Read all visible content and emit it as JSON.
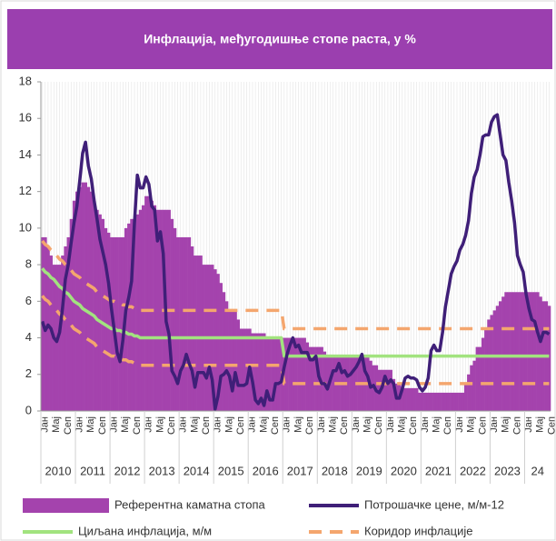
{
  "chart_data": {
    "type": "combo",
    "title": "Инфлација, међугодишње стопе раста, у %",
    "categories": [
      "Јан",
      null,
      null,
      null,
      "Мај",
      null,
      null,
      null,
      "Сеп",
      null,
      null,
      null,
      "Јан",
      null,
      null,
      null,
      "Мај",
      null,
      null,
      null,
      "Сеп",
      null,
      null,
      null,
      "Јан",
      null,
      null,
      null,
      "Мај",
      null,
      null,
      null,
      "Сеп",
      null,
      null,
      null,
      "Јан",
      null,
      null,
      null,
      "Мај",
      null,
      null,
      null,
      "Сеп",
      null,
      null,
      null,
      "Јан",
      null,
      null,
      null,
      "Мај",
      null,
      null,
      null,
      "Сеп",
      null,
      null,
      null,
      "Јан",
      null,
      null,
      null,
      "Мај",
      null,
      null,
      null,
      "Сеп",
      null,
      null,
      null,
      "Јан",
      null,
      null,
      null,
      "Мај",
      null,
      null,
      null,
      "Сеп",
      null,
      null,
      null,
      "Јан",
      null,
      null,
      null,
      "Мај",
      null,
      null,
      null,
      "Сеп",
      null,
      null,
      null,
      "Јан",
      null,
      null,
      null,
      "Мај",
      null,
      null,
      null,
      "Сеп",
      null,
      null,
      null,
      "Јан",
      null,
      null,
      null,
      "Мај",
      null,
      null,
      null,
      "Сеп",
      null,
      null,
      null,
      "Јан",
      null,
      null,
      null,
      "Мај",
      null,
      null,
      null,
      "Сеп",
      null,
      null,
      null,
      "Јан",
      null,
      null,
      null,
      "Мај",
      null,
      null,
      null,
      "Сеп",
      null,
      null,
      null,
      "Јан",
      null,
      null,
      null,
      "Мај",
      null,
      null,
      null,
      "Сеп",
      null,
      null,
      null,
      "Јан",
      null,
      null,
      null,
      "Мај",
      null,
      null,
      null,
      "Сеп",
      null,
      null,
      null,
      "Јан",
      null,
      null,
      null,
      "Мај",
      null,
      null,
      null,
      "Сеп"
    ],
    "years": [
      "2010",
      "2011",
      "2012",
      "2013",
      "2014",
      "2015",
      "2016",
      "2017",
      "2018",
      "2019",
      "2020",
      "2021",
      "2022",
      "2023",
      "24"
    ],
    "ylim": [
      0,
      18
    ],
    "yticks": [
      0,
      2,
      4,
      6,
      8,
      10,
      12,
      14,
      16,
      18
    ],
    "grid": "x",
    "series": [
      {
        "name": "Референтна каматна стопа",
        "style": "bar",
        "color": "#a443ad",
        "values": [
          9.5,
          9.5,
          9.0,
          8.5,
          8.0,
          8.0,
          8.0,
          8.5,
          9.0,
          9.5,
          10.5,
          11.5,
          12.0,
          12.25,
          12.5,
          12.5,
          12.25,
          12.0,
          11.5,
          11.0,
          10.75,
          10.5,
          10.0,
          9.75,
          9.5,
          9.5,
          9.5,
          9.5,
          9.5,
          10.0,
          10.25,
          10.5,
          10.5,
          10.75,
          11.0,
          11.25,
          11.75,
          11.75,
          11.5,
          11.25,
          11.0,
          11.0,
          11.0,
          11.0,
          11.0,
          10.5,
          10.0,
          9.5,
          9.5,
          9.5,
          9.5,
          9.5,
          9.0,
          8.5,
          8.5,
          8.5,
          8.0,
          8.0,
          8.0,
          8.0,
          7.75,
          7.5,
          7.0,
          6.5,
          6.0,
          5.5,
          5.5,
          5.5,
          5.0,
          4.5,
          4.5,
          4.5,
          4.5,
          4.25,
          4.25,
          4.25,
          4.25,
          4.25,
          4.0,
          4.0,
          4.0,
          4.0,
          4.0,
          4.0,
          4.0,
          4.0,
          4.0,
          4.0,
          4.0,
          4.0,
          4.0,
          4.0,
          3.75,
          3.5,
          3.5,
          3.5,
          3.5,
          3.5,
          3.25,
          3.0,
          3.0,
          3.0,
          3.0,
          3.0,
          3.0,
          3.0,
          3.0,
          3.0,
          3.0,
          3.0,
          3.0,
          3.0,
          3.0,
          3.0,
          2.75,
          2.5,
          2.5,
          2.25,
          2.25,
          2.25,
          2.25,
          2.25,
          1.75,
          1.5,
          1.5,
          1.25,
          1.25,
          1.25,
          1.25,
          1.25,
          1.25,
          1.0,
          1.0,
          1.0,
          1.0,
          1.0,
          1.0,
          1.0,
          1.0,
          1.0,
          1.0,
          1.0,
          1.0,
          1.0,
          1.0,
          1.0,
          1.0,
          1.5,
          2.0,
          2.5,
          2.75,
          3.5,
          3.5,
          4.0,
          4.5,
          5.0,
          5.25,
          5.5,
          5.75,
          6.0,
          6.25,
          6.5,
          6.5,
          6.5,
          6.5,
          6.5,
          6.5,
          6.5,
          6.5,
          6.5,
          6.5,
          6.5,
          6.5,
          6.25,
          6.0,
          6.0,
          5.75
        ]
      },
      {
        "name": "Потрошачке цене, м/м-12",
        "style": "line",
        "color": "#3f1f78",
        "values": [
          4.9,
          4.4,
          4.7,
          4.5,
          4.0,
          3.8,
          4.3,
          5.6,
          7.2,
          8.0,
          9.2,
          10.3,
          11.2,
          12.6,
          14.1,
          14.7,
          13.4,
          12.7,
          11.5,
          10.5,
          9.4,
          8.7,
          8.0,
          7.0,
          5.6,
          4.4,
          3.2,
          2.7,
          3.9,
          5.5,
          6.2,
          7.1,
          10.3,
          12.9,
          12.2,
          12.2,
          12.8,
          12.4,
          11.2,
          11.0,
          9.3,
          9.8,
          8.6,
          4.9,
          4.2,
          2.2,
          1.9,
          1.5,
          2.2,
          2.5,
          3.1,
          2.6,
          2.2,
          1.3,
          2.1,
          2.1,
          2.1,
          1.8,
          2.4,
          1.7,
          0.1,
          0.8,
          1.9,
          2.0,
          2.2,
          1.9,
          1.1,
          2.1,
          1.4,
          1.4,
          1.4,
          1.5,
          2.4,
          1.6,
          0.6,
          0.4,
          0.7,
          0.3,
          1.1,
          0.6,
          0.6,
          1.5,
          1.5,
          1.6,
          2.4,
          3.1,
          3.6,
          4.0,
          3.5,
          3.6,
          3.2,
          3.2,
          3.2,
          2.8,
          2.8,
          3.0,
          1.9,
          1.5,
          1.5,
          1.2,
          1.7,
          2.2,
          2.2,
          2.6,
          2.1,
          2.2,
          1.9,
          2.0,
          2.2,
          2.4,
          2.7,
          3.1,
          2.2,
          1.9,
          1.3,
          1.4,
          1.1,
          1.0,
          1.3,
          1.9,
          1.5,
          1.7,
          1.5,
          0.7,
          0.7,
          1.2,
          1.8,
          1.9,
          1.8,
          1.8,
          1.7,
          1.3,
          1.1,
          1.3,
          1.8,
          3.3,
          3.6,
          3.3,
          3.3,
          4.3,
          5.7,
          6.6,
          7.5,
          7.9,
          8.2,
          8.8,
          9.1,
          9.6,
          10.4,
          11.9,
          12.8,
          13.2,
          14.0,
          15.0,
          15.1,
          15.1,
          15.8,
          16.1,
          16.2,
          15.1,
          14.0,
          13.7,
          12.5,
          11.5,
          10.3,
          8.5,
          8.0,
          7.6,
          6.4,
          5.6,
          5.0,
          4.9,
          4.3,
          3.8,
          4.3,
          4.3,
          4.2
        ]
      },
      {
        "name": "Циљана инфлација, м/м",
        "style": "line",
        "color": "#a2e37f",
        "values": [
          7.8,
          7.6,
          7.5,
          7.3,
          7.2,
          7.0,
          6.8,
          6.7,
          6.5,
          6.4,
          6.2,
          6.0,
          5.9,
          5.8,
          5.6,
          5.5,
          5.4,
          5.3,
          5.2,
          5.0,
          4.9,
          4.8,
          4.7,
          4.6,
          4.5,
          4.5,
          4.4,
          4.4,
          4.3,
          4.3,
          4.2,
          4.2,
          4.1,
          4.1,
          4.0,
          4.0,
          4,
          4,
          4,
          4,
          4,
          4,
          4,
          4,
          4,
          4,
          4,
          4,
          4,
          4,
          4,
          4,
          4,
          4,
          4,
          4,
          4,
          4,
          4,
          4,
          4,
          4,
          4,
          4,
          4,
          4,
          4,
          4,
          4,
          4,
          4,
          4,
          4,
          4,
          4,
          4,
          4,
          4,
          4,
          4,
          4,
          4,
          4,
          4,
          3,
          3,
          3,
          3,
          3,
          3,
          3,
          3,
          3,
          3,
          3,
          3,
          3,
          3,
          3,
          3,
          3,
          3,
          3,
          3,
          3,
          3,
          3,
          3,
          3,
          3,
          3,
          3,
          3,
          3,
          3,
          3,
          3,
          3,
          3,
          3,
          3,
          3,
          3,
          3,
          3,
          3,
          3,
          3,
          3,
          3,
          3,
          3,
          3,
          3,
          3,
          3,
          3,
          3,
          3,
          3,
          3,
          3,
          3,
          3,
          3,
          3,
          3,
          3,
          3,
          3,
          3,
          3,
          3,
          3,
          3,
          3,
          3,
          3,
          3,
          3,
          3,
          3,
          3,
          3,
          3,
          3,
          3,
          3,
          3,
          3,
          3,
          3,
          3,
          3,
          3,
          3,
          3
        ]
      },
      {
        "name": "Коридор инфлације",
        "style": "dashed",
        "color": "#f4a66e",
        "values": [
          9.3,
          9.1,
          9.0,
          8.8,
          8.7,
          8.5,
          8.3,
          8.2,
          8.0,
          7.9,
          7.7,
          7.5,
          7.4,
          7.3,
          7.1,
          7.0,
          6.9,
          6.8,
          6.7,
          6.5,
          6.4,
          6.3,
          6.2,
          6.1,
          6.0,
          6.0,
          5.9,
          5.9,
          5.8,
          5.8,
          5.7,
          5.7,
          5.6,
          5.6,
          5.5,
          5.5,
          5.5,
          5.5,
          5.5,
          5.5,
          5.5,
          5.5,
          5.5,
          5.5,
          5.5,
          5.5,
          5.5,
          5.5,
          5.5,
          5.5,
          5.5,
          5.5,
          5.5,
          5.5,
          5.5,
          5.5,
          5.5,
          5.5,
          5.5,
          5.5,
          5.5,
          5.5,
          5.5,
          5.5,
          5.5,
          5.5,
          5.5,
          5.5,
          5.5,
          5.5,
          5.5,
          5.5,
          5.5,
          5.5,
          5.5,
          5.5,
          5.5,
          5.5,
          5.5,
          5.5,
          5.5,
          5.5,
          5.5,
          5.5,
          4.5,
          4.5,
          4.5,
          4.5,
          4.5,
          4.5,
          4.5,
          4.5,
          4.5,
          4.5,
          4.5,
          4.5,
          4.5,
          4.5,
          4.5,
          4.5,
          4.5,
          4.5,
          4.5,
          4.5,
          4.5,
          4.5,
          4.5,
          4.5,
          4.5,
          4.5,
          4.5,
          4.5,
          4.5,
          4.5,
          4.5,
          4.5,
          4.5,
          4.5,
          4.5,
          4.5,
          4.5,
          4.5,
          4.5,
          4.5,
          4.5,
          4.5,
          4.5,
          4.5,
          4.5,
          4.5,
          4.5,
          4.5,
          4.5,
          4.5,
          4.5,
          4.5,
          4.5,
          4.5,
          4.5,
          4.5,
          4.5,
          4.5,
          4.5,
          4.5,
          4.5,
          4.5,
          4.5,
          4.5,
          4.5,
          4.5,
          4.5,
          4.5,
          4.5,
          4.5,
          4.5,
          4.5,
          4.5,
          4.5,
          4.5,
          4.5,
          4.5,
          4.5,
          4.5,
          4.5,
          4.5,
          4.5,
          4.5,
          4.5,
          4.5,
          4.5,
          4.5,
          4.5,
          4.5,
          4.5,
          4.5,
          4.5,
          4.5
        ],
        "values_low": [
          6.3,
          6.1,
          6.0,
          5.8,
          5.7,
          5.5,
          5.3,
          5.2,
          5.0,
          4.9,
          4.7,
          4.5,
          4.4,
          4.3,
          4.1,
          4.0,
          3.9,
          3.8,
          3.7,
          3.5,
          3.4,
          3.3,
          3.2,
          3.1,
          3.0,
          3.0,
          2.9,
          2.9,
          2.8,
          2.8,
          2.7,
          2.7,
          2.6,
          2.6,
          2.5,
          2.5,
          2.5,
          2.5,
          2.5,
          2.5,
          2.5,
          2.5,
          2.5,
          2.5,
          2.5,
          2.5,
          2.5,
          2.5,
          2.5,
          2.5,
          2.5,
          2.5,
          2.5,
          2.5,
          2.5,
          2.5,
          2.5,
          2.5,
          2.5,
          2.5,
          2.5,
          2.5,
          2.5,
          2.5,
          2.5,
          2.5,
          2.5,
          2.5,
          2.5,
          2.5,
          2.5,
          2.5,
          2.5,
          2.5,
          2.5,
          2.5,
          2.5,
          2.5,
          2.5,
          2.5,
          2.5,
          2.5,
          2.5,
          2.5,
          1.5,
          1.5,
          1.5,
          1.5,
          1.5,
          1.5,
          1.5,
          1.5,
          1.5,
          1.5,
          1.5,
          1.5,
          1.5,
          1.5,
          1.5,
          1.5,
          1.5,
          1.5,
          1.5,
          1.5,
          1.5,
          1.5,
          1.5,
          1.5,
          1.5,
          1.5,
          1.5,
          1.5,
          1.5,
          1.5,
          1.5,
          1.5,
          1.5,
          1.5,
          1.5,
          1.5,
          1.5,
          1.5,
          1.5,
          1.5,
          1.5,
          1.5,
          1.5,
          1.5,
          1.5,
          1.5,
          1.5,
          1.5,
          1.5,
          1.5,
          1.5,
          1.5,
          1.5,
          1.5,
          1.5,
          1.5,
          1.5,
          1.5,
          1.5,
          1.5,
          1.5,
          1.5,
          1.5,
          1.5,
          1.5,
          1.5,
          1.5,
          1.5,
          1.5,
          1.5,
          1.5,
          1.5,
          1.5,
          1.5,
          1.5,
          1.5,
          1.5,
          1.5,
          1.5,
          1.5,
          1.5,
          1.5,
          1.5,
          1.5,
          1.5,
          1.5,
          1.5,
          1.5,
          1.5,
          1.5,
          1.5,
          1.5,
          1.5
        ]
      }
    ]
  }
}
